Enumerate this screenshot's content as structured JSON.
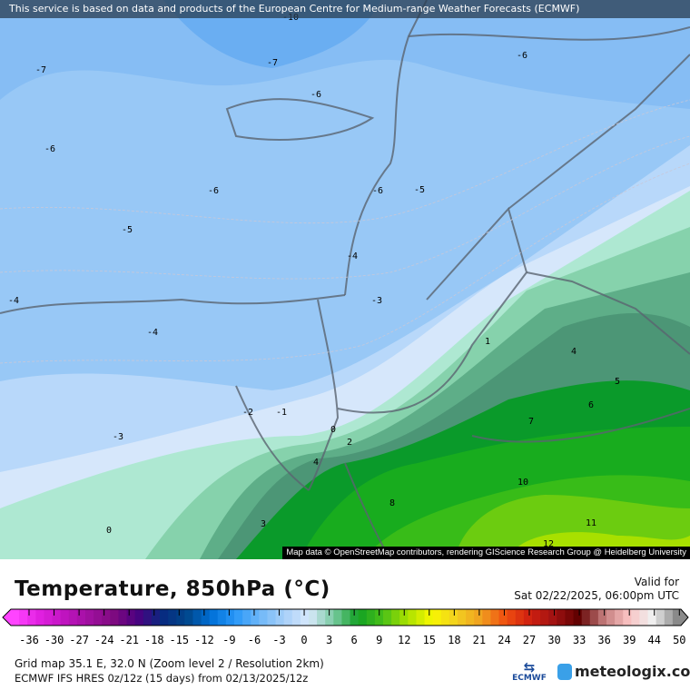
{
  "banner": "This service is based on data and products of the European Centre for Medium-range Weather Forecasts (ECMWF)",
  "attribution": "Map data © OpenStreetMap contributors, rendering GIScience Research Group @ Heidelberg University",
  "map": {
    "contour_labels": [
      "-10",
      "-7",
      "-7",
      "-6",
      "-6",
      "-6",
      "-6",
      "-6",
      "-5",
      "-5",
      "-4",
      "-4",
      "-4",
      "-3",
      "-2",
      "-1",
      "-3",
      "0",
      "2",
      "4",
      "1",
      "4",
      "5",
      "6",
      "7",
      "10",
      "8",
      "3",
      "0",
      "11",
      "12"
    ]
  },
  "legend": {
    "title": "Temperature, 850hPa (°C)",
    "valid_label": "Valid for",
    "valid_time": "Sat 02/22/2025, 06:00pm UTC",
    "ticks": [
      "-36",
      "-30",
      "-27",
      "-24",
      "-21",
      "-18",
      "-15",
      "-12",
      "-9",
      "-6",
      "-3",
      "0",
      "3",
      "6",
      "9",
      "12",
      "15",
      "18",
      "21",
      "24",
      "27",
      "30",
      "33",
      "36",
      "39",
      "44",
      "50"
    ],
    "colors": [
      "#ff44ff",
      "#e020e0",
      "#c014c0",
      "#a010a0",
      "#800a80",
      "#4a0080",
      "#082a80",
      "#00468a",
      "#0070d8",
      "#2a98f8",
      "#70b8f8",
      "#a8d0f8",
      "#d8e8fc",
      "#78caa0",
      "#12a024",
      "#48c018",
      "#a8e000",
      "#f8f800",
      "#f2d020",
      "#f0a020",
      "#f05010",
      "#d02010",
      "#a01212",
      "#600000",
      "#c07878",
      "#f8c0c0",
      "#f0f0f0",
      "#8a8a8a"
    ]
  },
  "info": {
    "grid": "Grid map 35.1 E, 32.0 N (Zoom level 2 / Resolution 2km)",
    "model": "ECMWF IFS HRES 0z/12z (15 days) from  02/13/2025/12z"
  },
  "logos": {
    "ecmwf": "ECMWF",
    "meteologix": "meteologix.com"
  }
}
